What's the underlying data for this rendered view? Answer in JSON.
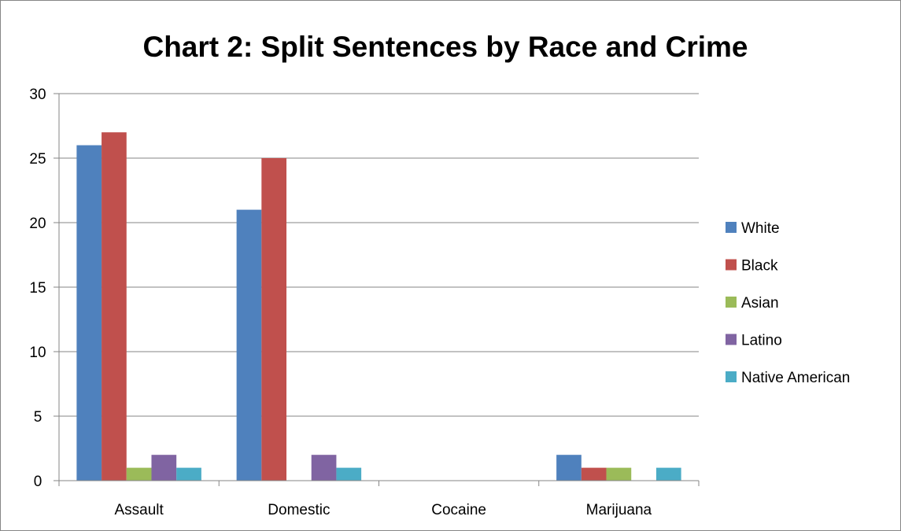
{
  "chart_data": {
    "type": "bar",
    "title": "Chart 2: Split Sentences by Race and Crime",
    "xlabel": "",
    "ylabel": "",
    "categories": [
      "Assault",
      "Domestic",
      "Cocaine",
      "Marijuana"
    ],
    "series": [
      {
        "name": "White",
        "color": "#4F81BD",
        "values": [
          26,
          21,
          0,
          2
        ]
      },
      {
        "name": "Black",
        "color": "#C0504D",
        "values": [
          27,
          25,
          0,
          1
        ]
      },
      {
        "name": "Asian",
        "color": "#9BBB59",
        "values": [
          1,
          0,
          0,
          1
        ]
      },
      {
        "name": "Latino",
        "color": "#8064A2",
        "values": [
          2,
          2,
          0,
          0
        ]
      },
      {
        "name": "Native American",
        "color": "#4BACC6",
        "values": [
          1,
          1,
          0,
          1
        ]
      }
    ],
    "ylim": [
      0,
      30
    ],
    "yticks": [
      "0",
      "5",
      "10",
      "15",
      "20",
      "25",
      "30"
    ],
    "grid": true,
    "legend_position": "right"
  }
}
